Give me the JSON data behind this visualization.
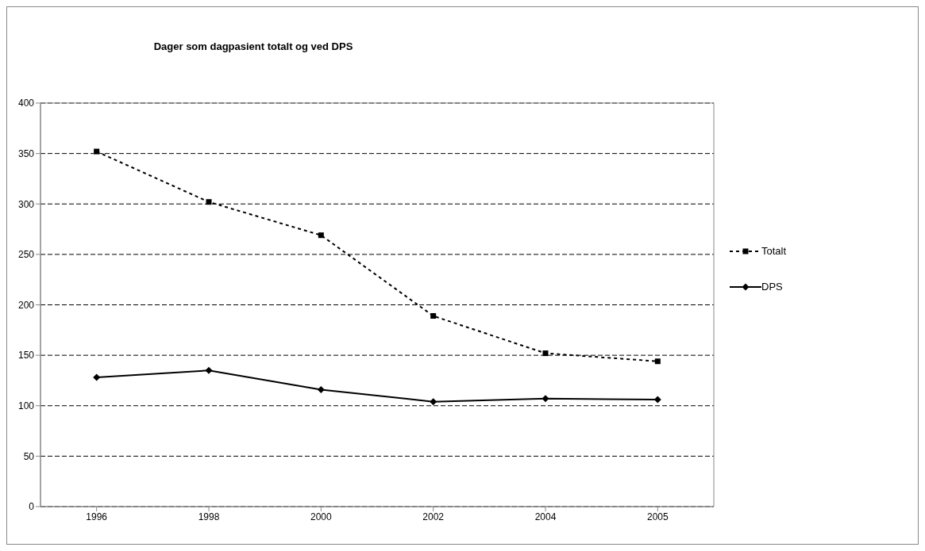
{
  "chart_data": {
    "type": "line",
    "title": "Dager som dagpasient totalt og ved DPS",
    "categories": [
      "1996",
      "1998",
      "2000",
      "2002",
      "2004",
      "2005"
    ],
    "series": [
      {
        "name": "Totalt",
        "color": "#000000",
        "marker": "square",
        "line_style": "dotted",
        "values": [
          352,
          302,
          269,
          189,
          152,
          144
        ]
      },
      {
        "name": "DPS",
        "color": "#000000",
        "marker": "diamond",
        "line_style": "solid",
        "values": [
          128,
          135,
          116,
          104,
          107,
          106
        ]
      }
    ],
    "ylim": [
      0,
      400
    ],
    "yticks": [
      0,
      50,
      100,
      150,
      200,
      250,
      300,
      350,
      400
    ],
    "grid": "y",
    "legend": "right"
  }
}
